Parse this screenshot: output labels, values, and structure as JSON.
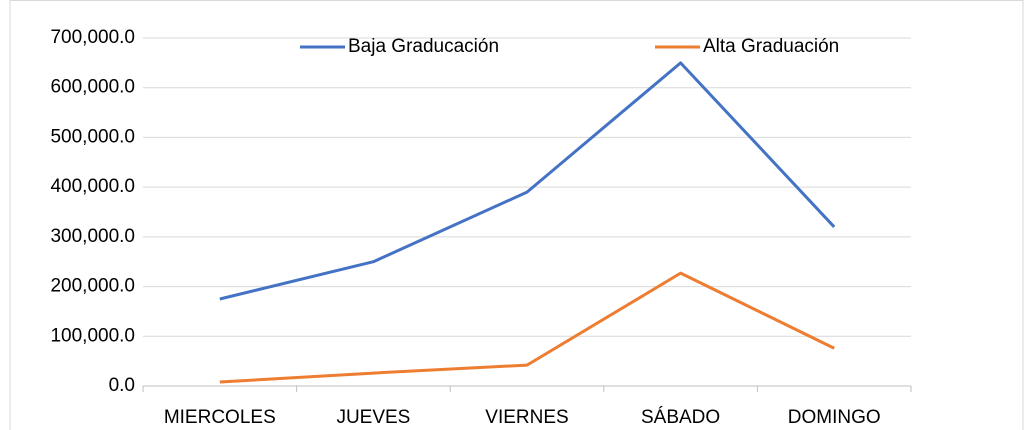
{
  "chart_data": {
    "type": "line",
    "categories": [
      "MIERCOLES",
      "JUEVES",
      "VIERNES",
      "SÁBADO",
      "DOMINGO"
    ],
    "series": [
      {
        "name": "Baja Graducación",
        "color": "#4472c4",
        "values": [
          175000,
          250000,
          390000,
          650000,
          320000
        ]
      },
      {
        "name": "Alta Graduación",
        "color": "#ed7d31",
        "values": [
          8000,
          26000,
          42000,
          227000,
          76000
        ]
      }
    ],
    "ylim": [
      0,
      700000
    ],
    "yticks": [
      {
        "value": 0,
        "label": "0.0"
      },
      {
        "value": 100000,
        "label": "100,000.0"
      },
      {
        "value": 200000,
        "label": "200,000.0"
      },
      {
        "value": 300000,
        "label": "300,000.0"
      },
      {
        "value": 400000,
        "label": "400,000.0"
      },
      {
        "value": 500000,
        "label": "500,000.0"
      },
      {
        "value": 600000,
        "label": "600,000.0"
      },
      {
        "value": 700000,
        "label": "700,000.0"
      }
    ],
    "grid": true,
    "legend": "top"
  }
}
